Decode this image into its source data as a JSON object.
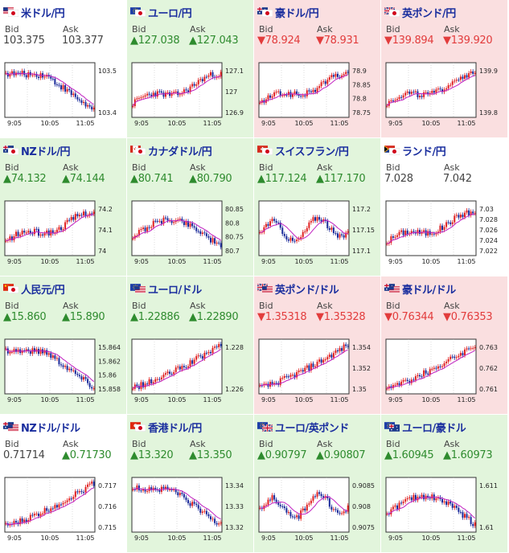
{
  "colors": {
    "up_bg": "#e2f5dc",
    "down_bg": "#fadfe0",
    "flat_bg": "#ffffff",
    "up_text": "#2e8b2e",
    "down_text": "#e23c3c",
    "candle_up": "#e02020",
    "candle_down": "#1a2a9a",
    "ma_line": "#c020c0",
    "title_text": "#1a2e9e"
  },
  "tiles": [
    {
      "name": "米ドル/円",
      "flags": [
        "us",
        "jp"
      ],
      "trend": "flat",
      "bid": "103.375",
      "ask": "103.377",
      "y_ticks": [
        "103.5",
        "103.4"
      ],
      "x_ticks": [
        "9:05",
        "10:05",
        "11:05"
      ],
      "shape": "down_us"
    },
    {
      "name": "ユーロ/円",
      "flags": [
        "eu",
        "jp"
      ],
      "trend": "up",
      "bid": "▲127.038",
      "ask": "▲127.043",
      "y_ticks": [
        "127.1",
        "127",
        "126.9"
      ],
      "x_ticks": [
        "9:05",
        "10:05",
        "11:05"
      ],
      "shape": "up_mid"
    },
    {
      "name": "豪ドル/円",
      "flags": [
        "au",
        "jp"
      ],
      "trend": "down",
      "bid": "▼78.924",
      "ask": "▼78.931",
      "y_ticks": [
        "78.9",
        "78.85",
        "78.8",
        "78.75"
      ],
      "x_ticks": [
        "9:05",
        "10:05",
        "11:05"
      ],
      "shape": "up_mid"
    },
    {
      "name": "英ポンド/円",
      "flags": [
        "gb",
        "jp"
      ],
      "trend": "down",
      "bid": "▼139.894",
      "ask": "▼139.920",
      "y_ticks": [
        "139.9",
        "139.8"
      ],
      "x_ticks": [
        "9:05",
        "10:05",
        "11:05"
      ],
      "shape": "up_mid"
    },
    {
      "name": "NZドル/円",
      "flags": [
        "nz",
        "jp"
      ],
      "trend": "up",
      "bid": "▲74.132",
      "ask": "▲74.144",
      "y_ticks": [
        "74.2",
        "74.1",
        "74"
      ],
      "x_ticks": [
        "9:05",
        "10:05",
        "11:05"
      ],
      "shape": "up_mid"
    },
    {
      "name": "カナダドル/円",
      "flags": [
        "ca",
        "jp"
      ],
      "trend": "up",
      "bid": "▲80.741",
      "ask": "▲80.790",
      "y_ticks": [
        "80.85",
        "80.8",
        "80.75",
        "80.7"
      ],
      "x_ticks": [
        "9:05",
        "10:05",
        "11:05"
      ],
      "shape": "hump"
    },
    {
      "name": "スイスフラン/円",
      "flags": [
        "ch",
        "jp"
      ],
      "trend": "up",
      "bid": "▲117.124",
      "ask": "▲117.170",
      "y_ticks": [
        "117.2",
        "117.15",
        "117.1"
      ],
      "x_ticks": [
        "9:05",
        "10:05",
        "11:05"
      ],
      "shape": "choppy"
    },
    {
      "name": "ランド/円",
      "flags": [
        "za",
        "jp"
      ],
      "trend": "flat",
      "bid": "7.028",
      "ask": "7.042",
      "y_ticks": [
        "7.03",
        "7.028",
        "7.026",
        "7.024",
        "7.022"
      ],
      "x_ticks": [
        "9:05",
        "10:05",
        "11:05"
      ],
      "shape": "up_mid"
    },
    {
      "name": "人民元/円",
      "flags": [
        "cn",
        "jp"
      ],
      "trend": "up",
      "bid": "▲15.860",
      "ask": "▲15.890",
      "y_ticks": [
        "15.864",
        "15.862",
        "15.86",
        "15.858"
      ],
      "x_ticks": [
        "9:05",
        "10:05",
        "11:05"
      ],
      "shape": "down_us"
    },
    {
      "name": "ユーロ/ドル",
      "flags": [
        "eu",
        "us"
      ],
      "trend": "up",
      "bid": "▲1.22886",
      "ask": "▲1.22890",
      "y_ticks": [
        "1.228",
        "1.226"
      ],
      "x_ticks": [
        "9:05",
        "10:05",
        "11:05"
      ],
      "shape": "up_strong"
    },
    {
      "name": "英ポンド/ドル",
      "flags": [
        "gb",
        "us"
      ],
      "trend": "down",
      "bid": "▼1.35318",
      "ask": "▼1.35328",
      "y_ticks": [
        "1.354",
        "1.352",
        "1.35"
      ],
      "x_ticks": [
        "9:05",
        "10:05",
        "11:05"
      ],
      "shape": "up_strong"
    },
    {
      "name": "豪ドル/ドル",
      "flags": [
        "au",
        "us"
      ],
      "trend": "down",
      "bid": "▼0.76344",
      "ask": "▼0.76353",
      "y_ticks": [
        "0.763",
        "0.762",
        "0.761"
      ],
      "x_ticks": [
        "9:05",
        "10:05",
        "11:05"
      ],
      "shape": "up_strong"
    },
    {
      "name": "NZドル/ドル",
      "flags": [
        "nz",
        "us"
      ],
      "trend": "flat",
      "bid": "0.71714",
      "ask": "▲0.71730",
      "y_ticks": [
        "0.717",
        "0.716",
        "0.715"
      ],
      "x_ticks": [
        "9:05",
        "10:05",
        "11:05"
      ],
      "shape": "up_strong"
    },
    {
      "name": "香港ドル/円",
      "flags": [
        "hk",
        "jp"
      ],
      "trend": "up",
      "bid": "▲13.320",
      "ask": "▲13.350",
      "y_ticks": [
        "13.34",
        "13.33",
        "13.32"
      ],
      "x_ticks": [
        "9:05",
        "10:05",
        "11:05"
      ],
      "shape": "down_us"
    },
    {
      "name": "ユーロ/英ポンド",
      "flags": [
        "eu",
        "gb"
      ],
      "trend": "up",
      "bid": "▲0.90797",
      "ask": "▲0.90807",
      "y_ticks": [
        "0.9085",
        "0.908",
        "0.9075"
      ],
      "x_ticks": [
        "9:05",
        "10:05",
        "11:05"
      ],
      "shape": "choppy"
    },
    {
      "name": "ユーロ/豪ドル",
      "flags": [
        "eu",
        "au"
      ],
      "trend": "up",
      "bid": "▲1.60945",
      "ask": "▲1.60973",
      "y_ticks": [
        "1.611",
        "1.61"
      ],
      "x_ticks": [
        "9:05",
        "10:05",
        "11:05"
      ],
      "shape": "hump"
    }
  ],
  "labels": {
    "bid": "Bid",
    "ask": "Ask"
  }
}
